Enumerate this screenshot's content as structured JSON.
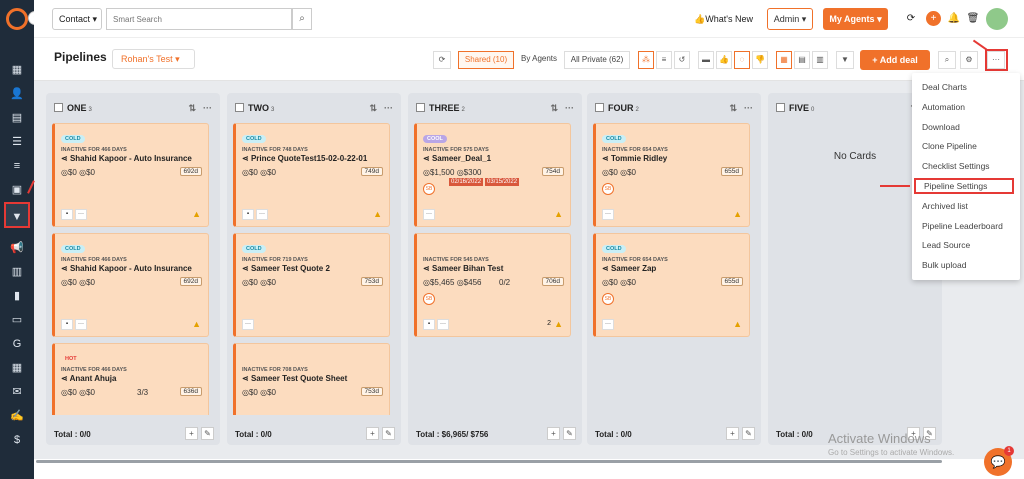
{
  "sidebar": {
    "items": [
      {
        "name": "dashboard-icon",
        "glyph": "▦"
      },
      {
        "name": "contacts-icon",
        "glyph": "👤"
      },
      {
        "name": "documents-icon",
        "glyph": "▤"
      },
      {
        "name": "tasks-icon",
        "glyph": "☰"
      },
      {
        "name": "list-icon",
        "glyph": "≡"
      },
      {
        "name": "contact-card-icon",
        "glyph": "▣"
      },
      {
        "name": "pipeline-icon",
        "glyph": "▼",
        "selected": true
      },
      {
        "name": "campaign-icon",
        "glyph": "📢"
      },
      {
        "name": "reports-icon",
        "glyph": "▥"
      },
      {
        "name": "analytics-icon",
        "glyph": "▮"
      },
      {
        "name": "folder-icon",
        "glyph": "▭"
      },
      {
        "name": "google-icon",
        "glyph": "G"
      },
      {
        "name": "calendar-icon",
        "glyph": "▦"
      },
      {
        "name": "email-icon",
        "glyph": "✉"
      },
      {
        "name": "signature-icon",
        "glyph": "✍"
      },
      {
        "name": "billing-icon",
        "glyph": "$"
      }
    ]
  },
  "topbar": {
    "contact_select": "Contact",
    "search_placeholder": "Smart Search",
    "whats_new": "What's New",
    "admin_select": "Admin",
    "my_agents": "My Agents"
  },
  "subbar": {
    "title": "Pipelines",
    "pipeline_select": "Rohan's Test",
    "shared": "Shared (10)",
    "by_agents": "By Agents",
    "all_private": "All Private (62)",
    "add_deal": "Add deal",
    "more": "···"
  },
  "columns": [
    {
      "name": "ONE",
      "count": "3",
      "total": "Total : 0/0",
      "cards": [
        {
          "badge": "COLD",
          "type": "cold",
          "inactive": "INACTIVE FOR 466 DAYS",
          "name": "Shahid Kapoor - Auto Insurance",
          "v1": "$0",
          "v2": "$0",
          "days": "692d",
          "ratio": "",
          "warn": true,
          "sb": false
        },
        {
          "badge": "COLD",
          "type": "cold",
          "inactive": "INACTIVE FOR 466 DAYS",
          "name": "Shahid Kapoor - Auto Insurance",
          "v1": "$0",
          "v2": "$0",
          "days": "692d",
          "ratio": "",
          "warn": true,
          "sb": false
        },
        {
          "badge": "HOT",
          "type": "hot",
          "inactive": "INACTIVE FOR 466 DAYS",
          "name": "Anant Ahuja",
          "v1": "$0",
          "v2": "$0",
          "days": "636d",
          "ratio": "3/3",
          "warn": false,
          "sb": false
        }
      ]
    },
    {
      "name": "TWO",
      "count": "3",
      "total": "Total : 0/0",
      "cards": [
        {
          "badge": "COLD",
          "type": "cold",
          "inactive": "INACTIVE FOR 748 DAYS",
          "name": "Prince QuoteTest15-02-0-22-01",
          "v1": "$0",
          "v2": "$0",
          "days": "749d",
          "ratio": "",
          "warn": true,
          "sb": false
        },
        {
          "badge": "COLD",
          "type": "cold",
          "inactive": "INACTIVE FOR 719 DAYS",
          "name": "Sameer Test Quote 2",
          "v1": "$0",
          "v2": "$0",
          "days": "753d",
          "ratio": "",
          "warn": false,
          "sb": false
        },
        {
          "badge": "",
          "type": "none",
          "inactive": "INACTIVE FOR 708 DAYS",
          "name": "Sameer Test Quote Sheet",
          "v1": "$0",
          "v2": "$0",
          "days": "753d",
          "ratio": "",
          "warn": false,
          "sb": false
        }
      ]
    },
    {
      "name": "THREE",
      "count": "2",
      "total": "Total : $6,965/ $756",
      "cards": [
        {
          "badge": "COOL",
          "type": "cool",
          "inactive": "INACTIVE FOR 575 DAYS",
          "name": "Sameer_Deal_1",
          "v1": "$1,500",
          "v2": "$300",
          "days": "754d",
          "ratio": "",
          "warn": true,
          "sb": true,
          "sb_text": "SB",
          "dates": [
            "02/16/2022",
            "03/15/2022"
          ]
        },
        {
          "badge": "",
          "type": "none",
          "inactive": "INACTIVE FOR 545 DAYS",
          "name": "Sameer Bihan Test",
          "v1": "$5,465",
          "v2": "$456",
          "days": "706d",
          "ratio": "0/2",
          "warn": true,
          "sb": true,
          "sb_text": "SB",
          "notes": "2"
        }
      ]
    },
    {
      "name": "FOUR",
      "count": "2",
      "total": "Total : 0/0",
      "cards": [
        {
          "badge": "COLD",
          "type": "cold",
          "inactive": "INACTIVE FOR 654 DAYS",
          "name": "Tommie Ridley",
          "v1": "$0",
          "v2": "$0",
          "days": "655d",
          "ratio": "",
          "warn": true,
          "sb": true,
          "sb_text": "SB"
        },
        {
          "badge": "COLD",
          "type": "cold",
          "inactive": "INACTIVE FOR 654 DAYS",
          "name": "Sameer Zap",
          "v1": "$0",
          "v2": "$0",
          "days": "655d",
          "ratio": "",
          "warn": true,
          "sb": true,
          "sb_text": "SB"
        }
      ]
    },
    {
      "name": "FIVE",
      "count": "0",
      "total": "Total : 0/0",
      "cards": [],
      "empty": "No Cards"
    }
  ],
  "dropdown": {
    "items": [
      "Deal Charts",
      "Automation",
      "Download",
      "Clone Pipeline",
      "Checklist Settings",
      "Pipeline Settings",
      "Archived list",
      "Pipeline Leaderboard",
      "Lead Source",
      "Bulk upload"
    ],
    "highlighted": "Pipeline Settings"
  },
  "watermark": {
    "line1": "Activate Windows",
    "line2": "Go to Settings to activate Windows."
  },
  "chat_badge": "1"
}
